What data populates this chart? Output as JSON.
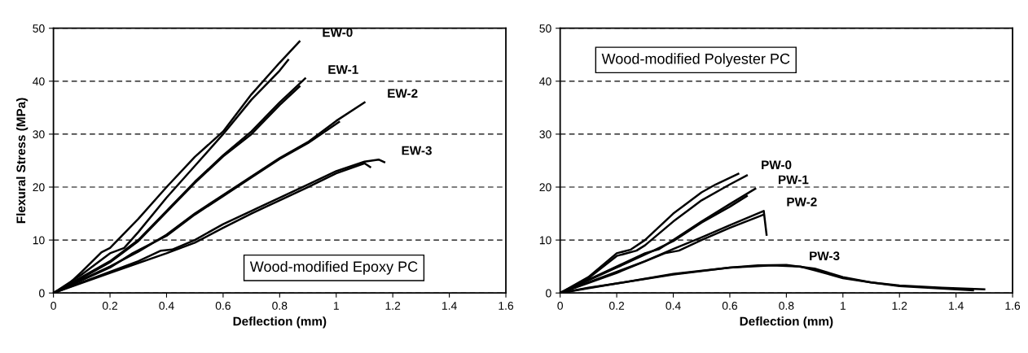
{
  "chart_data": [
    {
      "type": "line",
      "xlabel": "Deflection (mm)",
      "ylabel": "Flexural Stress (MPa)",
      "xlim": [
        0,
        1.6
      ],
      "ylim": [
        0,
        50
      ],
      "xticks": [
        0,
        0.2,
        0.4,
        0.6,
        0.8,
        1,
        1.2,
        1.4,
        1.6
      ],
      "yticks": [
        0,
        10,
        20,
        30,
        40,
        50
      ],
      "grid": "y",
      "line_style": "solid",
      "annotations": [
        "Wood-modified Epoxy PC"
      ],
      "series": [
        {
          "name": "EW-0",
          "color": "#000000",
          "x": [
            0,
            0.05,
            0.1,
            0.17,
            0.2,
            0.3,
            0.4,
            0.5,
            0.6,
            0.7,
            0.8,
            0.87
          ],
          "values": [
            0,
            1.5,
            4,
            7.7,
            8.5,
            14,
            20,
            25.7,
            30.5,
            37.5,
            43.5,
            47.5
          ]
        },
        {
          "color": "#000000",
          "x": [
            0,
            0.1,
            0.2,
            0.25,
            0.3,
            0.4,
            0.5,
            0.6,
            0.7,
            0.8,
            0.83
          ],
          "values": [
            0,
            3.5,
            7.5,
            8.5,
            11.5,
            18,
            24,
            30,
            36.5,
            42,
            44
          ]
        },
        {
          "name": "EW-1",
          "color": "#000000",
          "x": [
            0,
            0.1,
            0.2,
            0.3,
            0.4,
            0.5,
            0.6,
            0.7,
            0.8,
            0.89
          ],
          "values": [
            0,
            3,
            6,
            10,
            15.5,
            21,
            26,
            30.5,
            36,
            40.5
          ]
        },
        {
          "color": "#000000",
          "x": [
            0,
            0.1,
            0.2,
            0.3,
            0.4,
            0.5,
            0.6,
            0.7,
            0.8,
            0.87
          ],
          "values": [
            0,
            2.8,
            5.8,
            9.8,
            15.3,
            20.8,
            25.8,
            30,
            35.5,
            39
          ]
        },
        {
          "name": "EW-2",
          "color": "#000000",
          "x": [
            0,
            0.1,
            0.2,
            0.3,
            0.4,
            0.5,
            0.6,
            0.7,
            0.8,
            0.9,
            1.0,
            1.1
          ],
          "values": [
            0,
            2.5,
            5,
            7.8,
            11,
            15,
            18.5,
            22,
            25.5,
            28.5,
            32.5,
            36
          ]
        },
        {
          "color": "#000000",
          "x": [
            0,
            0.1,
            0.2,
            0.28,
            0.4,
            0.5,
            0.6,
            0.7,
            0.8,
            0.9,
            1.01
          ],
          "values": [
            0,
            2.4,
            4.8,
            7.5,
            10.8,
            14.8,
            18.3,
            21.8,
            25.3,
            28.3,
            32.3
          ]
        },
        {
          "name": "EW-3",
          "color": "#000000",
          "x": [
            0,
            0.1,
            0.2,
            0.3,
            0.38,
            0.42,
            0.5,
            0.6,
            0.7,
            0.8,
            0.9,
            1.0,
            1.1,
            1.15,
            1.17
          ],
          "values": [
            0,
            2,
            4,
            6,
            8,
            8.2,
            10,
            13,
            15.5,
            18,
            20.5,
            23,
            24.8,
            25.2,
            24.7
          ]
        },
        {
          "color": "#000000",
          "x": [
            0,
            0.2,
            0.4,
            0.5,
            0.6,
            0.7,
            0.8,
            0.9,
            1.0,
            1.1,
            1.12
          ],
          "values": [
            0,
            3.8,
            7.5,
            9.5,
            12.3,
            15,
            17.5,
            20,
            22.6,
            24.5,
            23.8
          ]
        }
      ]
    },
    {
      "type": "line",
      "xlabel": "Deflection (mm)",
      "xlim": [
        0,
        1.6
      ],
      "ylim": [
        0,
        50
      ],
      "xticks": [
        0,
        0.2,
        0.4,
        0.6,
        0.8,
        1,
        1.2,
        1.4,
        1.6
      ],
      "yticks": [
        0,
        10,
        20,
        30,
        40,
        50
      ],
      "grid": "y",
      "line_style": "solid",
      "annotations": [
        "Wood-modified Polyester PC"
      ],
      "series": [
        {
          "name": "PW-0",
          "color": "#000000",
          "x": [
            0,
            0.1,
            0.2,
            0.25,
            0.3,
            0.4,
            0.5,
            0.55,
            0.63
          ],
          "values": [
            0,
            3,
            7.5,
            8.2,
            10,
            15,
            19,
            20.5,
            22.5
          ]
        },
        {
          "color": "#000000",
          "x": [
            0,
            0.1,
            0.2,
            0.27,
            0.3,
            0.4,
            0.5,
            0.6,
            0.66
          ],
          "values": [
            0,
            2.8,
            7,
            8,
            9,
            13.5,
            17.5,
            20.5,
            22.2
          ]
        },
        {
          "name": "PW-1",
          "color": "#000000",
          "x": [
            0,
            0.1,
            0.2,
            0.3,
            0.35,
            0.4,
            0.5,
            0.6,
            0.69
          ],
          "values": [
            0,
            2.5,
            5,
            7.5,
            8.3,
            10,
            13.5,
            16.8,
            19.7
          ]
        },
        {
          "color": "#000000",
          "x": [
            0,
            0.1,
            0.2,
            0.33,
            0.4,
            0.5,
            0.6,
            0.66
          ],
          "values": [
            0,
            2.4,
            4.8,
            8,
            9.8,
            13.3,
            16.3,
            18.3
          ]
        },
        {
          "name": "PW-2",
          "color": "#000000",
          "x": [
            0,
            0.1,
            0.2,
            0.3,
            0.4,
            0.5,
            0.6,
            0.72,
            0.73
          ],
          "values": [
            0,
            2,
            4,
            6,
            8.3,
            10.5,
            12.8,
            15.5,
            11
          ]
        },
        {
          "color": "#000000",
          "x": [
            0,
            0.2,
            0.37,
            0.42,
            0.5,
            0.6,
            0.72
          ],
          "values": [
            0,
            3.8,
            7.5,
            8,
            10,
            12.3,
            14.8
          ]
        },
        {
          "name": "PW-3",
          "color": "#000000",
          "x": [
            0,
            0.1,
            0.2,
            0.4,
            0.6,
            0.7,
            0.8,
            0.9,
            1.0,
            1.1,
            1.2,
            1.35,
            1.5
          ],
          "values": [
            0,
            1,
            1.8,
            3.6,
            4.8,
            5.2,
            5.3,
            4.6,
            3,
            2,
            1.4,
            1,
            0.7
          ]
        },
        {
          "color": "#000000",
          "x": [
            0,
            0.2,
            0.4,
            0.6,
            0.75,
            0.85,
            0.9,
            1.0,
            1.1,
            1.2,
            1.46
          ],
          "values": [
            0,
            1.8,
            3.5,
            4.8,
            5.2,
            5,
            4.3,
            2.8,
            2,
            1.3,
            0.5
          ]
        }
      ]
    }
  ]
}
